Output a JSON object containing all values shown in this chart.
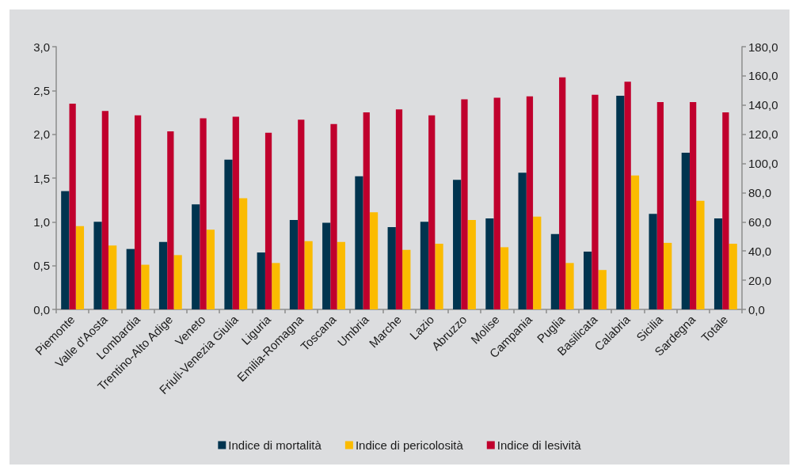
{
  "chart_data": {
    "type": "bar",
    "categories": [
      "Piemonte",
      "Valle d'Aosta",
      "Lombardia",
      "Trentino-Alto Adige",
      "Veneto",
      "Friuli-Venezia Giulia",
      "Liguria",
      "Emilia-Romagna",
      "Toscana",
      "Umbria",
      "Marche",
      "Lazio",
      "Abruzzo",
      "Molise",
      "Campania",
      "Puglia",
      "Basilicata",
      "Calabria",
      "Sicilia",
      "Sardegna",
      "Totale"
    ],
    "series": [
      {
        "name": "Indice di mortalità",
        "color": "#00344f",
        "values": [
          1.35,
          1.0,
          0.69,
          0.77,
          1.2,
          1.71,
          0.65,
          1.02,
          0.99,
          1.52,
          0.94,
          1.0,
          1.48,
          1.04,
          1.56,
          0.86,
          0.66,
          2.44,
          1.09,
          1.79,
          1.04
        ]
      },
      {
        "name": "Indice di pericolosità",
        "color": "#fbbb00",
        "values": [
          0.95,
          0.73,
          0.51,
          0.62,
          0.91,
          1.27,
          0.53,
          0.78,
          0.77,
          1.11,
          0.68,
          0.75,
          1.02,
          0.71,
          1.06,
          0.53,
          0.45,
          1.53,
          0.76,
          1.24,
          0.75
        ]
      },
      {
        "name": "Indice di lesività",
        "color": "#c0002d",
        "axis": "y2",
        "values": [
          141,
          136,
          133,
          122,
          131,
          132,
          121,
          130,
          127,
          135,
          137,
          133,
          144,
          145,
          146,
          159,
          147,
          156,
          142,
          142,
          135
        ]
      }
    ],
    "ylim": [
      0,
      3
    ],
    "yticks": [
      {
        "value": 0,
        "label": "0,0"
      },
      {
        "value": 0.5,
        "label": "0,5"
      },
      {
        "value": 1,
        "label": "1,0"
      },
      {
        "value": 1.5,
        "label": "1,5"
      },
      {
        "value": 2,
        "label": "2,0"
      },
      {
        "value": 2.5,
        "label": "2,5"
      },
      {
        "value": 3,
        "label": "3,0"
      }
    ],
    "y2lim": [
      0,
      180
    ],
    "y2ticks": [
      {
        "value": 0,
        "label": "0,0"
      },
      {
        "value": 20,
        "label": "20,0"
      },
      {
        "value": 40,
        "label": "40,0"
      },
      {
        "value": 60,
        "label": "60,0"
      },
      {
        "value": 80,
        "label": "80,0"
      },
      {
        "value": 100,
        "label": "100,0"
      },
      {
        "value": 120,
        "label": "120,0"
      },
      {
        "value": 140,
        "label": "140,0"
      },
      {
        "value": 160,
        "label": "160,0"
      },
      {
        "value": 180,
        "label": "180,0"
      }
    ],
    "legend": "bottom"
  }
}
